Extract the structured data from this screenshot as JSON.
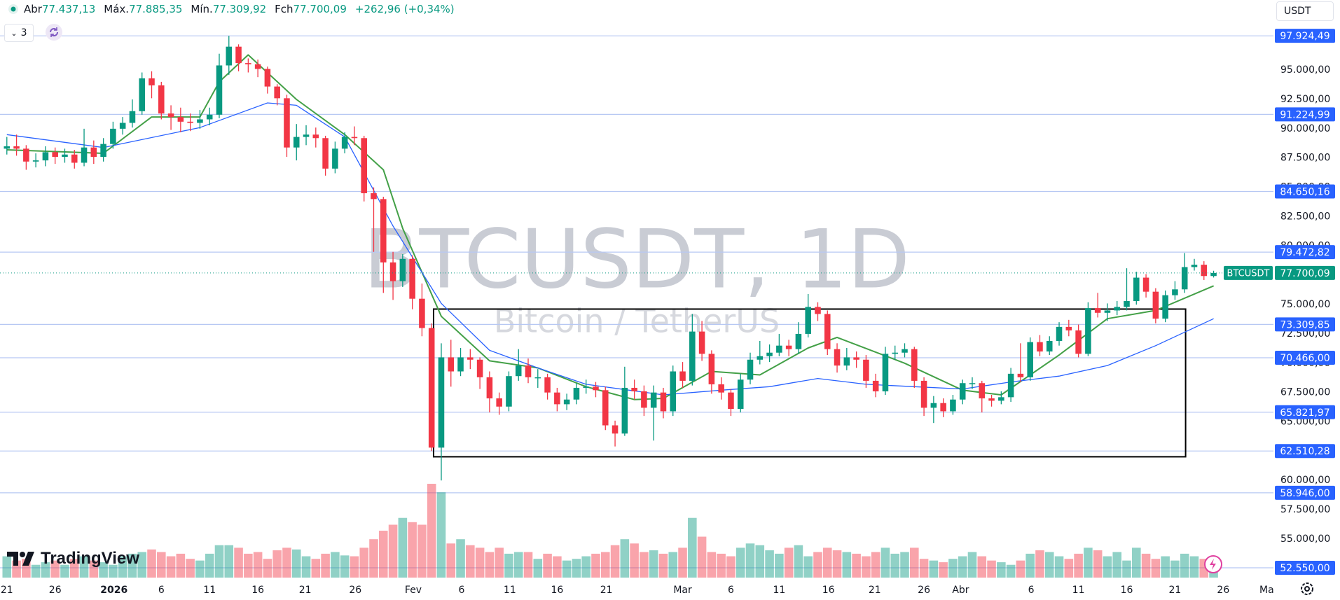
{
  "toolbar": {
    "indicators_count": "3",
    "currency": "USDT",
    "brand": "TradingView"
  },
  "chart_data": {
    "type": "candlestick",
    "title": "BTCUSDT, 1D",
    "subtitle": "Bitcoin / TetherUS",
    "ohlc_legend": [
      {
        "label": "Abr",
        "value": "77.437,13"
      },
      {
        "label": "Máx.",
        "value": "77.885,35"
      },
      {
        "label": "Mín.",
        "value": "77.309,92"
      },
      {
        "label": "Fch",
        "value": "77.700,09"
      }
    ],
    "change": "+262,96 (+0,34%)",
    "up_color": "#089981",
    "down_color": "#f23645",
    "open": [
      88300,
      88500,
      88300,
      87200,
      87300,
      88000,
      87600,
      87800,
      87100,
      88400,
      87600,
      88700,
      90000,
      90500,
      91500,
      94300,
      93700,
      91300,
      91000,
      90600,
      90500,
      90800,
      91200,
      95400,
      97000,
      95600,
      95500,
      95100,
      93600,
      92600,
      88400,
      89300,
      89500,
      89200,
      86600,
      88300,
      89300,
      89200,
      84500,
      84000,
      78600,
      77000,
      78900,
      75500,
      73000,
      62800,
      70500,
      69300,
      70500,
      70300,
      68800,
      67000,
      66300,
      68900,
      69800,
      68800,
      68800,
      67500,
      66500,
      66900,
      67900,
      68000,
      67700,
      64700,
      64000,
      67900,
      67600,
      66200,
      67500,
      65900,
      69300,
      68500,
      72700,
      70800,
      68200,
      67500,
      66100,
      68600,
      70300,
      70600,
      70900,
      71500,
      71200,
      72500,
      74800,
      74200,
      71200,
      69800,
      70500,
      70300,
      68500,
      67600,
      70800,
      70900,
      71200,
      68500,
      66200,
      66600,
      65900,
      66900,
      68300,
      68300,
      67000,
      66800,
      67100,
      69100,
      68800,
      71800,
      71000,
      71900,
      73100,
      72800,
      70800,
      74700,
      74300,
      74500,
      74800,
      75300,
      77300,
      76100,
      73800,
      75800,
      76300,
      78200,
      78400,
      77437.13
    ],
    "high": [
      89300,
      89500,
      88600,
      87900,
      88500,
      88400,
      88300,
      88200,
      90000,
      89000,
      89200,
      90600,
      91000,
      92500,
      94800,
      94900,
      94000,
      92000,
      91800,
      91300,
      91600,
      91800,
      96400,
      97924.49,
      97200,
      96000,
      95900,
      95300,
      93800,
      92900,
      90400,
      90300,
      90100,
      89400,
      88900,
      89700,
      90200,
      89400,
      85000,
      84200,
      79500,
      79300,
      79200,
      76800,
      73400,
      71700,
      72000,
      71300,
      71200,
      70500,
      69300,
      67500,
      69300,
      71200,
      70400,
      69500,
      69100,
      67900,
      67400,
      68300,
      68600,
      68400,
      68000,
      65100,
      69700,
      68600,
      68100,
      68100,
      67900,
      69800,
      70100,
      74200,
      73600,
      71100,
      68800,
      67800,
      69100,
      70900,
      71900,
      71600,
      72500,
      72000,
      73500,
      75900,
      75200,
      74500,
      71700,
      71300,
      71000,
      70700,
      69100,
      71400,
      71500,
      71700,
      71400,
      68800,
      67200,
      67000,
      67300,
      68600,
      68800,
      68500,
      67300,
      67600,
      69600,
      71700,
      72200,
      72400,
      72300,
      73500,
      73700,
      73300,
      75200,
      76000,
      75100,
      75300,
      78100,
      77800,
      77600,
      76400,
      76200,
      77000,
      79400,
      78900,
      78700,
      77885.35
    ],
    "low": [
      87800,
      87700,
      86500,
      86700,
      86800,
      87000,
      87100,
      86600,
      86800,
      87000,
      87200,
      88300,
      89500,
      90100,
      91200,
      92600,
      90800,
      89900,
      89700,
      89800,
      90000,
      90300,
      90900,
      94600,
      94900,
      94800,
      94400,
      93000,
      92000,
      87600,
      87300,
      88600,
      88400,
      86000,
      86200,
      87900,
      88600,
      83800,
      79500,
      76000,
      75400,
      76500,
      74600,
      72300,
      62510.28,
      60000,
      68000,
      68900,
      69500,
      67800,
      65800,
      65600,
      65900,
      68500,
      68300,
      67900,
      66900,
      65900,
      66000,
      66500,
      67400,
      67100,
      64300,
      62900,
      63800,
      66900,
      65500,
      63400,
      65300,
      65500,
      67900,
      68100,
      70200,
      67400,
      66900,
      65500,
      65800,
      68200,
      69900,
      70100,
      70600,
      70600,
      70800,
      72200,
      73600,
      70700,
      69200,
      69400,
      69600,
      67900,
      67100,
      67300,
      70300,
      70500,
      67900,
      65500,
      64900,
      65400,
      65600,
      66500,
      67800,
      65800,
      66300,
      66500,
      66700,
      68400,
      68500,
      70600,
      70700,
      71500,
      72300,
      70500,
      70600,
      73900,
      73600,
      74100,
      74500,
      75000,
      75600,
      73400,
      73500,
      75400,
      76000,
      77900,
      77100,
      77309.92
    ],
    "close": [
      88500,
      88300,
      87200,
      87300,
      88000,
      87600,
      87800,
      87100,
      88400,
      87600,
      88700,
      90000,
      90500,
      91500,
      94300,
      93700,
      91300,
      91000,
      90600,
      90500,
      90800,
      91200,
      95400,
      97000,
      95600,
      95500,
      95100,
      93600,
      92600,
      88400,
      89300,
      89500,
      89200,
      86600,
      88300,
      89300,
      89200,
      84500,
      84000,
      78600,
      77000,
      78900,
      75500,
      73000,
      62800,
      70500,
      69300,
      70500,
      70300,
      68800,
      67000,
      66300,
      68900,
      69800,
      68800,
      68800,
      67500,
      66500,
      66900,
      67900,
      68000,
      67700,
      64700,
      64000,
      67900,
      67600,
      66200,
      67500,
      65900,
      69300,
      68500,
      72700,
      70800,
      68200,
      67500,
      66100,
      68600,
      70300,
      70600,
      70900,
      71500,
      71200,
      72500,
      74800,
      74200,
      71200,
      69800,
      70500,
      70300,
      68500,
      67600,
      70800,
      70900,
      71200,
      68500,
      66200,
      66600,
      65900,
      66900,
      68300,
      68300,
      67000,
      66800,
      67100,
      69100,
      68800,
      71800,
      71000,
      71900,
      73100,
      72800,
      70800,
      74700,
      74300,
      74500,
      74800,
      75300,
      77300,
      76100,
      73800,
      75800,
      76300,
      78200,
      78400,
      77437.13,
      77700.09
    ],
    "volume": [
      25,
      20,
      22,
      15,
      18,
      20,
      15,
      22,
      25,
      20,
      18,
      15,
      25,
      28,
      30,
      33,
      30,
      25,
      28,
      22,
      20,
      28,
      38,
      38,
      35,
      28,
      30,
      22,
      32,
      35,
      33,
      25,
      22,
      28,
      30,
      26,
      25,
      35,
      45,
      55,
      62,
      70,
      65,
      62,
      110,
      100,
      40,
      45,
      38,
      35,
      30,
      35,
      28,
      30,
      30,
      22,
      28,
      25,
      20,
      22,
      25,
      28,
      30,
      38,
      45,
      40,
      30,
      32,
      28,
      30,
      35,
      70,
      48,
      30,
      28,
      25,
      35,
      40,
      38,
      32,
      28,
      35,
      38,
      25,
      30,
      35,
      32,
      30,
      28,
      25,
      30,
      35,
      28,
      30,
      35,
      22,
      20,
      18,
      22,
      25,
      30,
      25,
      20,
      18,
      15,
      20,
      28,
      32,
      30,
      25,
      22,
      28,
      35,
      32,
      25,
      30,
      20,
      35,
      28,
      22,
      25,
      20,
      28,
      25,
      22,
      18
    ],
    "moving_averages": [
      {
        "color": "#43a047",
        "x": [
          0,
          10,
          15,
          20,
          22,
          25,
          30,
          35,
          39,
          41,
          45,
          50,
          55,
          60,
          65,
          68,
          73,
          78,
          83,
          86,
          93,
          99,
          103,
          109,
          114,
          119,
          125
        ],
        "values": [
          88200,
          87900,
          91000,
          91000,
          94000,
          96300,
          92500,
          89500,
          86500,
          81500,
          74000,
          70200,
          69600,
          68000,
          66900,
          67000,
          69300,
          69000,
          71300,
          72200,
          70000,
          67700,
          67300,
          70700,
          73800,
          74500,
          76600
        ]
      },
      {
        "color": "#2962ff",
        "x": [
          0,
          10,
          20,
          27,
          30,
          35,
          40,
          45,
          50,
          55,
          60,
          68,
          74,
          79,
          84,
          89,
          94,
          99,
          104,
          109,
          114,
          119,
          125
        ],
        "values": [
          89500,
          88400,
          90100,
          92200,
          92000,
          89300,
          81700,
          75100,
          71100,
          69600,
          68200,
          67300,
          67700,
          68000,
          68700,
          68200,
          68000,
          67800,
          68400,
          68900,
          69800,
          71500,
          73800
        ]
      }
    ],
    "levels": [
      {
        "value": 97924.49,
        "label": "97.924,49"
      },
      {
        "value": 91224.99,
        "label": "91.224,99"
      },
      {
        "value": 84650.16,
        "label": "84.650,16"
      },
      {
        "value": 79472.82,
        "label": "79.472,82"
      },
      {
        "value": 73309.85,
        "label": "73.309,85"
      },
      {
        "value": 70466.0,
        "label": "70.466,00"
      },
      {
        "value": 65821.97,
        "label": "65.821,97"
      },
      {
        "value": 62510.28,
        "label": "62.510,28"
      },
      {
        "value": 58946.0,
        "label": "58.946,00"
      },
      {
        "value": 52550.0,
        "label": "52.550,00"
      }
    ],
    "level_color": "#b7c8f3",
    "last_price": {
      "value": 77700.09,
      "label": "77.700,09",
      "symbol": "BTCUSDT"
    },
    "box": {
      "x": [
        44.2,
        122.1
      ],
      "y": [
        74618,
        62019
      ]
    },
    "ylim": [
      51415,
      100981
    ],
    "yticks": [
      {
        "value": 95000,
        "label": "95.000,00"
      },
      {
        "value": 92500,
        "label": "92.500,00"
      },
      {
        "value": 90000,
        "label": "90.000,00"
      },
      {
        "value": 87500,
        "label": "87.500,00"
      },
      {
        "value": 85000,
        "label": "85.000,00"
      },
      {
        "value": 82500,
        "label": "82.500,00"
      },
      {
        "value": 80000,
        "label": "80.000,00"
      },
      {
        "value": 77500,
        "label": "77.500,00"
      },
      {
        "value": 75000,
        "label": "75.000,00"
      },
      {
        "value": 72500,
        "label": "72.500,00"
      },
      {
        "value": 70000,
        "label": "70.000,00"
      },
      {
        "value": 67500,
        "label": "67.500,00"
      },
      {
        "value": 65000,
        "label": "65.000,00"
      },
      {
        "value": 62500,
        "label": "62.500,00"
      },
      {
        "value": 60000,
        "label": "60.000,00"
      },
      {
        "value": 57500,
        "label": "57.500,00"
      },
      {
        "value": 55000,
        "label": "55.000,00"
      }
    ],
    "xlim": [
      -0.71,
      131.2
    ],
    "xticks": [
      {
        "value": 0,
        "label": "21"
      },
      {
        "value": 5.0,
        "label": "26"
      },
      {
        "value": 11.1,
        "label": "2026"
      },
      {
        "value": 16.0,
        "label": "6"
      },
      {
        "value": 21.0,
        "label": "11"
      },
      {
        "value": 26.0,
        "label": "16"
      },
      {
        "value": 30.9,
        "label": "21"
      },
      {
        "value": 36.1,
        "label": "26"
      },
      {
        "value": 42.1,
        "label": "Fev"
      },
      {
        "value": 47.1,
        "label": "6"
      },
      {
        "value": 52.1,
        "label": "11"
      },
      {
        "value": 57.0,
        "label": "16"
      },
      {
        "value": 62.1,
        "label": "21"
      },
      {
        "value": 70.0,
        "label": "Mar"
      },
      {
        "value": 75.0,
        "label": "6"
      },
      {
        "value": 80.0,
        "label": "11"
      },
      {
        "value": 85.1,
        "label": "16"
      },
      {
        "value": 89.9,
        "label": "21"
      },
      {
        "value": 95.0,
        "label": "26"
      },
      {
        "value": 98.8,
        "label": "Abr"
      },
      {
        "value": 106.1,
        "label": "6"
      },
      {
        "value": 111.0,
        "label": "11"
      },
      {
        "value": 116.0,
        "label": "16"
      },
      {
        "value": 121.0,
        "label": "21"
      },
      {
        "value": 126.0,
        "label": "26"
      },
      {
        "value": 130.5,
        "label": "Ma"
      }
    ]
  }
}
